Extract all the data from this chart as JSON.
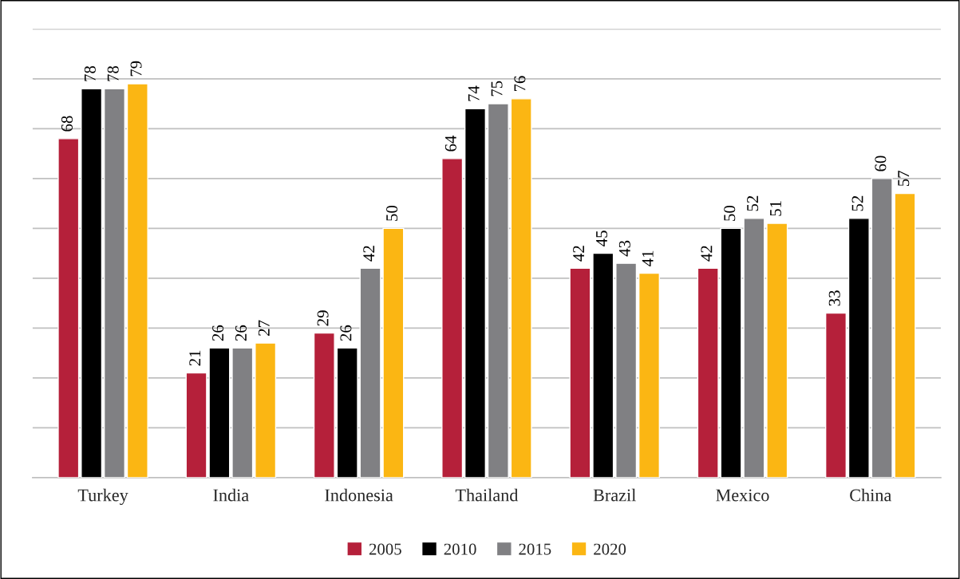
{
  "chart_data": {
    "type": "bar",
    "categories": [
      "Turkey",
      "India",
      "Indonesia",
      "Thailand",
      "Brazil",
      "Mexico",
      "China"
    ],
    "series": [
      {
        "name": "2005",
        "color": "#b5203a",
        "values": [
          68,
          21,
          29,
          64,
          42,
          42,
          33
        ]
      },
      {
        "name": "2010",
        "color": "#000000",
        "values": [
          78,
          26,
          26,
          74,
          45,
          50,
          52
        ]
      },
      {
        "name": "2015",
        "color": "#808083",
        "values": [
          78,
          26,
          42,
          75,
          43,
          52,
          60
        ]
      },
      {
        "name": "2020",
        "color": "#fbb613",
        "values": [
          79,
          27,
          50,
          76,
          41,
          51,
          57
        ]
      }
    ],
    "ylim": [
      0,
      90
    ],
    "yticks": [
      {
        "value": 0,
        "label": null
      },
      {
        "value": 10,
        "label": null
      },
      {
        "value": 20,
        "label": null
      },
      {
        "value": 30,
        "label": null
      },
      {
        "value": 40,
        "label": null
      },
      {
        "value": 50,
        "label": null
      },
      {
        "value": 60,
        "label": null
      },
      {
        "value": 70,
        "label": null
      },
      {
        "value": 80,
        "label": null
      },
      {
        "value": 90,
        "label": null
      }
    ],
    "tick_labels": "x",
    "grid": "y",
    "data_labels": true,
    "legend": "bottom"
  }
}
